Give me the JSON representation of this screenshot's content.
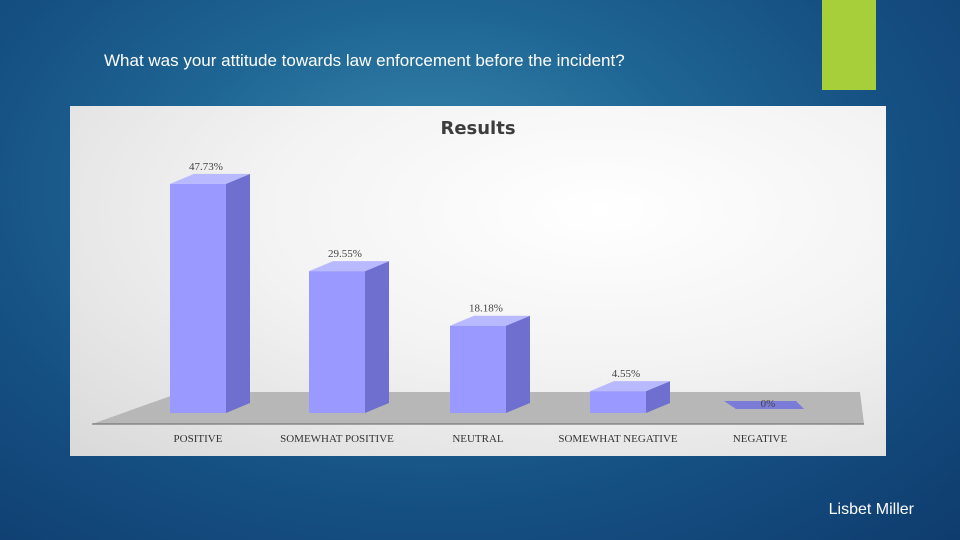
{
  "slide": {
    "question": "What was your attitude towards law enforcement before the incident?",
    "author": "Lisbet Miller",
    "accent_color": "#a6cf3a"
  },
  "chart_data": {
    "type": "bar",
    "title": "Results",
    "categories": [
      "POSITIVE",
      "SOMEWHAT POSITIVE",
      "NEUTRAL",
      "SOMEWHAT NEGATIVE",
      "NEGATIVE"
    ],
    "values": [
      47.73,
      29.55,
      18.18,
      4.55,
      0
    ],
    "value_labels": [
      "47.73%",
      "29.55%",
      "18.18%",
      "4.55%",
      "0%"
    ],
    "ylim": [
      0,
      50
    ],
    "grid": false,
    "bar_color": "#9999ff",
    "style": "3d"
  }
}
